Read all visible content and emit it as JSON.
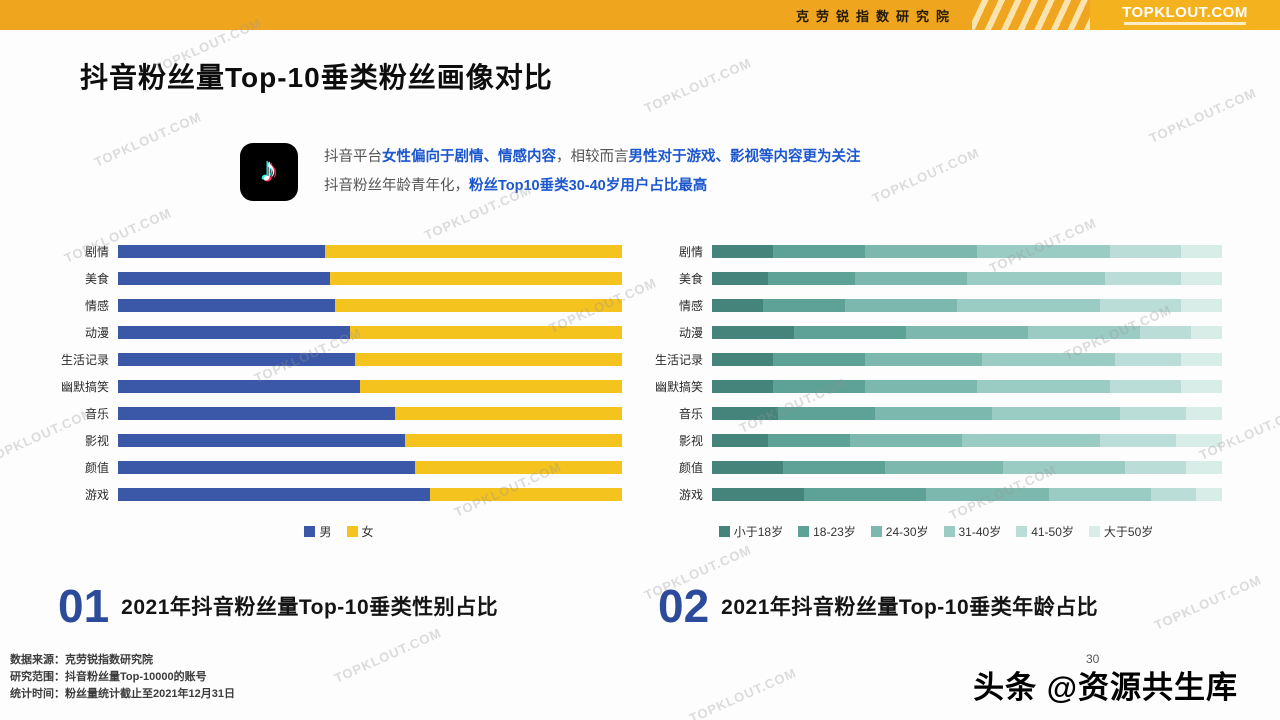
{
  "header": {
    "institute": "克劳锐指数研究院",
    "logo": "TOPKLOUT.COM"
  },
  "title": "抖音粉丝量Top-10垂类粉丝画像对比",
  "intro": {
    "lines": [
      [
        {
          "text": "抖音平台",
          "highlight": false
        },
        {
          "text": "女性偏向于剧情、情感内容",
          "highlight": true
        },
        {
          "text": "，相较而言",
          "highlight": false
        },
        {
          "text": "男性对于游戏、影视等内容更为关注",
          "highlight": true
        }
      ],
      [
        {
          "text": "抖音粉丝年龄青年化，",
          "highlight": false
        },
        {
          "text": "粉丝Top10垂类30-40岁用户占比最高",
          "highlight": true
        }
      ]
    ]
  },
  "chart_data": [
    {
      "type": "bar",
      "orientation": "horizontal-stacked",
      "unit": "percent",
      "xlim": [
        0,
        100
      ],
      "grid": false,
      "legend_position": "bottom-center",
      "categories": [
        "剧情",
        "美食",
        "情感",
        "动漫",
        "生活记录",
        "幽默搞笑",
        "音乐",
        "影视",
        "颜值",
        "游戏"
      ],
      "series": [
        {
          "name": "男",
          "color": "#3A57A8",
          "values": [
            41,
            42,
            43,
            46,
            47,
            48,
            55,
            57,
            59,
            62
          ]
        },
        {
          "name": "女",
          "color": "#F5C31D",
          "values": [
            59,
            58,
            57,
            54,
            53,
            52,
            45,
            43,
            41,
            38
          ]
        }
      ],
      "caption_number": "01",
      "caption": "2021年抖音粉丝量Top-10垂类性别占比"
    },
    {
      "type": "bar",
      "orientation": "horizontal-stacked",
      "unit": "percent",
      "xlim": [
        0,
        100
      ],
      "grid": false,
      "legend_position": "bottom-center",
      "categories": [
        "剧情",
        "美食",
        "情感",
        "动漫",
        "生活记录",
        "幽默搞笑",
        "音乐",
        "影视",
        "颜值",
        "游戏"
      ],
      "series": [
        {
          "name": "小于18岁",
          "color": "#45847B",
          "values": [
            12,
            11,
            10,
            16,
            12,
            12,
            13,
            11,
            14,
            18
          ]
        },
        {
          "name": "18-23岁",
          "color": "#5EA196",
          "values": [
            18,
            17,
            16,
            22,
            18,
            18,
            19,
            16,
            20,
            24
          ]
        },
        {
          "name": "24-30岁",
          "color": "#7CB8AE",
          "values": [
            22,
            22,
            22,
            24,
            23,
            22,
            23,
            22,
            23,
            24
          ]
        },
        {
          "name": "31-40岁",
          "color": "#9BCCC4",
          "values": [
            26,
            27,
            28,
            22,
            26,
            26,
            25,
            27,
            24,
            20
          ]
        },
        {
          "name": "41-50岁",
          "color": "#BBDDD7",
          "values": [
            14,
            15,
            16,
            10,
            13,
            14,
            13,
            15,
            12,
            9
          ]
        },
        {
          "name": "大于50岁",
          "color": "#D8ECE8",
          "values": [
            8,
            8,
            8,
            6,
            8,
            8,
            7,
            9,
            7,
            5
          ]
        }
      ],
      "caption_number": "02",
      "caption": "2021年抖音粉丝量Top-10垂类年龄占比"
    }
  ],
  "footnotes": [
    "数据来源：克劳锐指数研究院",
    "研究范围：抖音粉丝量Top-10000的账号",
    "统计时间：粉丝量统计截止至2021年12月31日"
  ],
  "page_number": "30",
  "reposter_watermark": "头条 @资源共生库",
  "watermark": "TOPKLOUT.COM",
  "colors": {
    "header_bg": "#F0A51E",
    "highlight_text": "#1C57CE",
    "caption_number": "#2C4B9B",
    "male": "#3A57A8",
    "female": "#F5C31D"
  }
}
